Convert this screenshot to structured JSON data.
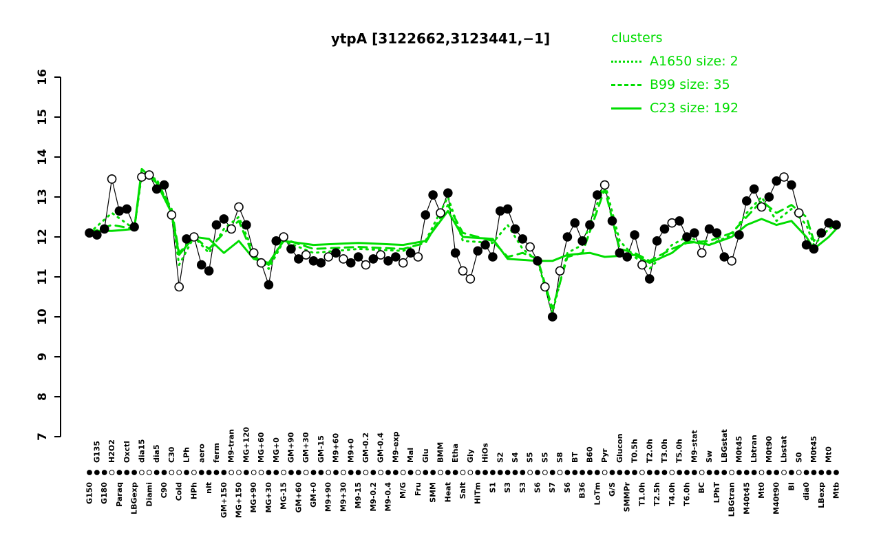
{
  "title": "ytpA [3122662,3123441,−1]",
  "legend": {
    "title": "clusters",
    "entries": [
      {
        "label": "A1650 size: 2",
        "style": "dotted"
      },
      {
        "label": "B99 size: 35",
        "style": "dashed"
      },
      {
        "label": "C23 size: 192",
        "style": "solid"
      }
    ]
  },
  "chart_data": {
    "type": "line",
    "title": "ytpA [3122662,3123441,−1]",
    "ylabel": "",
    "xlabel": "",
    "ylim": [
      7,
      16
    ],
    "yticks": [
      7,
      8,
      9,
      10,
      11,
      12,
      13,
      14,
      15,
      16
    ],
    "grid": false,
    "legend_position": "top-right",
    "colors": {
      "cluster": "#00dd00",
      "samples": "#000000",
      "point_open_fill": "#ffffff"
    },
    "categories": [
      "G150",
      "G135",
      "G180",
      "H2O2",
      "Paraq",
      "Oxctl",
      "LBGexp",
      "dia15",
      "Diami",
      "dia5",
      "C90",
      "C30",
      "Cold",
      "LPh",
      "HPh",
      "aero",
      "nit",
      "ferm",
      "GM+150",
      "M9-tran",
      "MG+150",
      "MG+120",
      "MG+90",
      "MG+60",
      "MG+30",
      "MG+0",
      "MG-15",
      "GM+90",
      "GM+60",
      "GM+30",
      "GM+0",
      "GM-15",
      "M9+90",
      "M9+60",
      "M9+30",
      "M9+0",
      "M9-15",
      "GM-0.2",
      "M9-0.2",
      "GM-0.4",
      "M9-0.4",
      "M9-exp",
      "M/G",
      "Mal",
      "Fru",
      "Glu",
      "SMM",
      "BMM",
      "Heat",
      "Etha",
      "Salt",
      "Gly",
      "HiTm",
      "HiOs",
      "S1",
      "S2",
      "S3",
      "S4",
      "S3",
      "S5",
      "S6",
      "S5",
      "S7",
      "S8",
      "S6",
      "BT",
      "B36",
      "B60",
      "LoTm",
      "Pyr",
      "G/S",
      "Glucon",
      "SMMPr",
      "T0.5h",
      "T1.0h",
      "T2.0h",
      "T2.5h",
      "T3.0h",
      "T4.0h",
      "T5.0h",
      "T6.0h",
      "M9-stat",
      "BC",
      "Sw",
      "LPhT",
      "LBGstat",
      "LBGtran",
      "M0t45",
      "M40t45",
      "Lbtran",
      "Mt0",
      "M0t90",
      "M40t90",
      "Lbstat",
      "BI",
      "S0",
      "dia0",
      "M0t45",
      "LBexp",
      "Mt0",
      "Mtb"
    ],
    "samples": {
      "name": "ytpA expression (log2)",
      "values": [
        12.1,
        12.05,
        12.2,
        13.45,
        12.65,
        12.7,
        12.25,
        13.5,
        13.55,
        13.2,
        13.3,
        12.55,
        10.75,
        11.95,
        12.0,
        11.3,
        11.15,
        12.3,
        12.45,
        12.2,
        12.75,
        12.3,
        11.6,
        11.35,
        10.8,
        11.9,
        12.0,
        11.7,
        11.45,
        11.55,
        11.4,
        11.35,
        11.5,
        11.6,
        11.45,
        11.35,
        11.5,
        11.3,
        11.45,
        11.55,
        11.4,
        11.5,
        11.35,
        11.6,
        11.5,
        12.55,
        13.05,
        12.6,
        13.1,
        11.6,
        11.15,
        10.95,
        11.65,
        11.8,
        11.5,
        12.65,
        12.7,
        12.2,
        11.95,
        11.75,
        11.4,
        10.75,
        10.0,
        11.15,
        12.0,
        12.35,
        11.9,
        12.3,
        13.05,
        13.3,
        12.4,
        11.6,
        11.5,
        12.05,
        11.3,
        10.95,
        11.9,
        12.2,
        12.35,
        12.4,
        12.0,
        12.1,
        11.6,
        12.2,
        12.1,
        11.5,
        11.4,
        12.05,
        12.9,
        13.2,
        12.75,
        13.0,
        13.4,
        13.5,
        13.3,
        12.6,
        11.8,
        11.7,
        12.1,
        12.35,
        12.3
      ],
      "filled": [
        1,
        1,
        1,
        0,
        1,
        1,
        1,
        0,
        0,
        1,
        1,
        0,
        0,
        1,
        0,
        1,
        1,
        1,
        1,
        0,
        0,
        1,
        0,
        0,
        1,
        1,
        0,
        1,
        1,
        0,
        1,
        1,
        0,
        1,
        0,
        1,
        1,
        0,
        1,
        0,
        1,
        1,
        0,
        1,
        0,
        1,
        1,
        0,
        1,
        1,
        0,
        0,
        1,
        1,
        1,
        1,
        1,
        1,
        1,
        0,
        1,
        0,
        1,
        0,
        1,
        1,
        1,
        1,
        1,
        0,
        1,
        1,
        1,
        1,
        0,
        1,
        1,
        1,
        0,
        1,
        1,
        1,
        0,
        1,
        1,
        1,
        0,
        1,
        1,
        1,
        0,
        1,
        1,
        0,
        1,
        0,
        1,
        1,
        1,
        1,
        1
      ]
    },
    "clusters": [
      {
        "name": "A1650 size: 2",
        "style": "dotted",
        "anchors": [
          [
            0,
            12.1
          ],
          [
            3,
            12.6
          ],
          [
            6,
            12.2
          ],
          [
            7,
            13.55
          ],
          [
            9,
            13.45
          ],
          [
            11,
            12.6
          ],
          [
            12,
            11.3
          ],
          [
            14,
            12.0
          ],
          [
            16,
            11.6
          ],
          [
            18,
            12.2
          ],
          [
            20,
            12.5
          ],
          [
            22,
            11.6
          ],
          [
            24,
            11.2
          ],
          [
            26,
            11.9
          ],
          [
            30,
            11.6
          ],
          [
            36,
            11.7
          ],
          [
            42,
            11.65
          ],
          [
            45,
            11.9
          ],
          [
            48,
            13.0
          ],
          [
            50,
            11.9
          ],
          [
            54,
            11.85
          ],
          [
            56,
            12.3
          ],
          [
            58,
            11.7
          ],
          [
            60,
            11.4
          ],
          [
            62,
            10.1
          ],
          [
            64,
            11.6
          ],
          [
            66,
            11.8
          ],
          [
            69,
            13.35
          ],
          [
            71,
            11.9
          ],
          [
            73,
            11.5
          ],
          [
            75,
            11.2
          ],
          [
            78,
            11.8
          ],
          [
            80,
            12.0
          ],
          [
            83,
            11.8
          ],
          [
            86,
            12.05
          ],
          [
            88,
            12.6
          ],
          [
            90,
            13.0
          ],
          [
            92,
            12.4
          ],
          [
            94,
            12.7
          ],
          [
            96,
            12.3
          ],
          [
            97,
            11.8
          ],
          [
            99,
            12.2
          ],
          [
            100,
            12.3
          ]
        ]
      },
      {
        "name": "B99 size: 35",
        "style": "dashed",
        "anchors": [
          [
            0,
            12.1
          ],
          [
            3,
            12.3
          ],
          [
            6,
            12.2
          ],
          [
            7,
            13.6
          ],
          [
            9,
            13.4
          ],
          [
            11,
            12.7
          ],
          [
            12,
            11.6
          ],
          [
            14,
            12.0
          ],
          [
            16,
            11.7
          ],
          [
            18,
            12.1
          ],
          [
            20,
            12.4
          ],
          [
            22,
            11.5
          ],
          [
            24,
            11.3
          ],
          [
            26,
            11.95
          ],
          [
            30,
            11.7
          ],
          [
            36,
            11.75
          ],
          [
            42,
            11.7
          ],
          [
            45,
            11.85
          ],
          [
            48,
            12.8
          ],
          [
            50,
            12.1
          ],
          [
            54,
            11.9
          ],
          [
            56,
            11.5
          ],
          [
            58,
            11.6
          ],
          [
            60,
            11.45
          ],
          [
            62,
            10.2
          ],
          [
            64,
            11.5
          ],
          [
            66,
            11.6
          ],
          [
            69,
            13.2
          ],
          [
            71,
            11.7
          ],
          [
            73,
            11.6
          ],
          [
            75,
            11.4
          ],
          [
            78,
            11.7
          ],
          [
            80,
            11.85
          ],
          [
            83,
            11.9
          ],
          [
            86,
            12.1
          ],
          [
            88,
            12.5
          ],
          [
            90,
            12.9
          ],
          [
            92,
            12.6
          ],
          [
            94,
            12.8
          ],
          [
            96,
            12.5
          ],
          [
            97,
            11.9
          ],
          [
            99,
            12.3
          ],
          [
            100,
            12.35
          ]
        ]
      },
      {
        "name": "C23 size: 192",
        "style": "solid",
        "anchors": [
          [
            0,
            12.15
          ],
          [
            3,
            12.15
          ],
          [
            6,
            12.2
          ],
          [
            7,
            13.7
          ],
          [
            9,
            13.35
          ],
          [
            11,
            12.6
          ],
          [
            12,
            11.55
          ],
          [
            14,
            12.0
          ],
          [
            16,
            11.95
          ],
          [
            18,
            11.6
          ],
          [
            20,
            11.9
          ],
          [
            22,
            11.45
          ],
          [
            24,
            11.35
          ],
          [
            26,
            11.9
          ],
          [
            30,
            11.8
          ],
          [
            36,
            11.85
          ],
          [
            42,
            11.8
          ],
          [
            45,
            11.9
          ],
          [
            48,
            12.65
          ],
          [
            50,
            12.0
          ],
          [
            54,
            11.95
          ],
          [
            56,
            11.45
          ],
          [
            60,
            11.4
          ],
          [
            62,
            11.4
          ],
          [
            64,
            11.55
          ],
          [
            67,
            11.6
          ],
          [
            69,
            11.5
          ],
          [
            73,
            11.55
          ],
          [
            75,
            11.35
          ],
          [
            78,
            11.6
          ],
          [
            80,
            11.9
          ],
          [
            83,
            11.8
          ],
          [
            86,
            12.0
          ],
          [
            88,
            12.3
          ],
          [
            90,
            12.45
          ],
          [
            92,
            12.3
          ],
          [
            94,
            12.4
          ],
          [
            96,
            12.0
          ],
          [
            97,
            11.7
          ],
          [
            99,
            12.0
          ],
          [
            100,
            12.2
          ]
        ]
      }
    ]
  }
}
